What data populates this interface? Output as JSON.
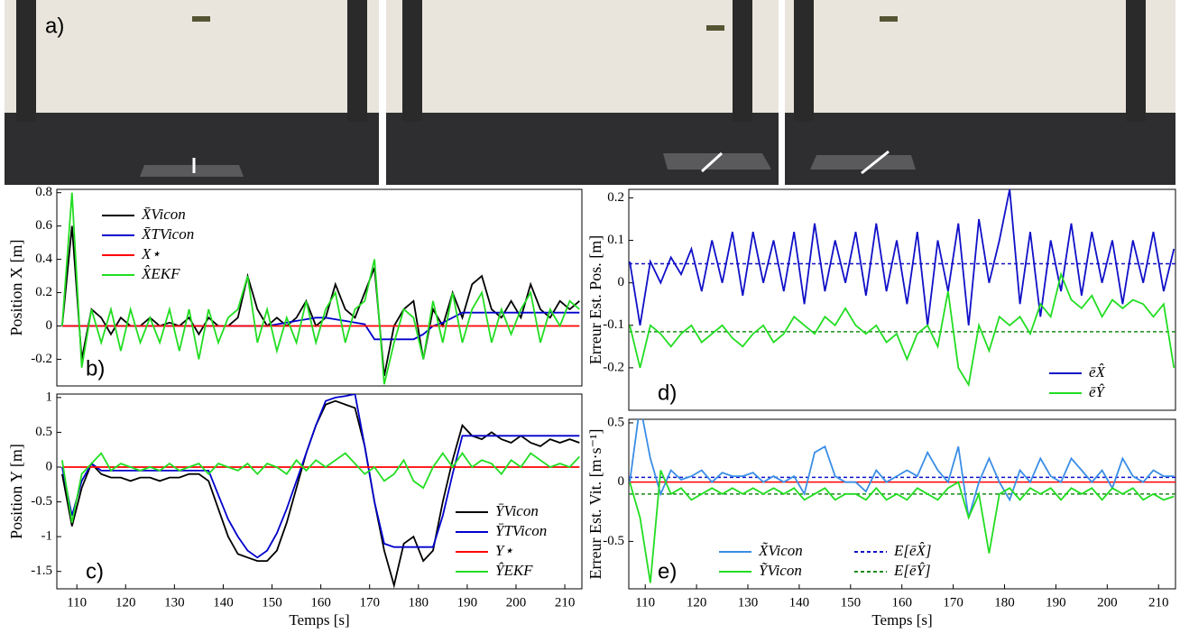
{
  "photos": {
    "label": "a)"
  },
  "chart_data": [
    {
      "type": "line",
      "y_label": "Position X [m]",
      "panel_label": "b)",
      "x": [
        107,
        109,
        111,
        113,
        115,
        117,
        119,
        121,
        123,
        125,
        127,
        129,
        131,
        133,
        135,
        137,
        139,
        141,
        143,
        145,
        147,
        149,
        151,
        153,
        155,
        157,
        159,
        161,
        163,
        165,
        167,
        169,
        171,
        173,
        175,
        177,
        179,
        181,
        183,
        185,
        187,
        189,
        191,
        193,
        195,
        197,
        199,
        201,
        203,
        205,
        207,
        209,
        211,
        213
      ],
      "xlim": [
        105.9,
        213.5
      ],
      "ylim": [
        -0.36,
        0.82
      ],
      "yticks": [
        -0.2,
        0,
        0.2,
        0.4,
        0.6,
        0.8
      ],
      "legend": "upper left",
      "series": [
        {
          "name": "X̄Vicon",
          "color": "#000000",
          "values": [
            0,
            0.6,
            -0.2,
            0.1,
            0.05,
            -0.05,
            0.05,
            0,
            0,
            0.05,
            0,
            0.02,
            0,
            0.05,
            -0.05,
            0.05,
            0,
            0,
            0.05,
            0.3,
            0.1,
            0,
            0.05,
            0,
            0.05,
            0.15,
            0,
            0.05,
            0.25,
            0.1,
            0.05,
            0.2,
            0.35,
            -0.3,
            0,
            0.1,
            0.15,
            -0.2,
            0.1,
            0,
            0.2,
            0.05,
            0.25,
            0.3,
            0.1,
            0.05,
            0.15,
            0.05,
            0.25,
            0.1,
            0.05,
            0.15,
            0.1,
            0.15
          ]
        },
        {
          "name": "X̄TVicon",
          "color": "#0000cc",
          "values": [
            0,
            0,
            0,
            0,
            0,
            0,
            0,
            0,
            0,
            0,
            0,
            0,
            0,
            0,
            0,
            0,
            0,
            0,
            0,
            0,
            0,
            0,
            0.01,
            0.02,
            0.03,
            0.04,
            0.05,
            0.05,
            0.04,
            0.03,
            0.02,
            0.01,
            -0.08,
            -0.08,
            -0.08,
            -0.08,
            -0.08,
            -0.05,
            0,
            0.02,
            0.05,
            0.08,
            0.08,
            0.08,
            0.08,
            0.08,
            0.08,
            0.08,
            0.08,
            0.08,
            0.08,
            0.08,
            0.08,
            0.08
          ]
        },
        {
          "name": "X⋆",
          "color": "#ff0000",
          "values": [
            0,
            0,
            0,
            0,
            0,
            0,
            0,
            0,
            0,
            0,
            0,
            0,
            0,
            0,
            0,
            0,
            0,
            0,
            0,
            0,
            0,
            0,
            0,
            0,
            0,
            0,
            0,
            0,
            0,
            0,
            0,
            0,
            0,
            0,
            0,
            0,
            0,
            0,
            0,
            0,
            0,
            0,
            0,
            0,
            0,
            0,
            0,
            0,
            0,
            0,
            0,
            0,
            0,
            0
          ]
        },
        {
          "name": "X̂EKF",
          "color": "#22dd22",
          "values": [
            0,
            0.8,
            -0.25,
            0.1,
            -0.1,
            0.1,
            -0.15,
            0.1,
            -0.1,
            0.05,
            -0.1,
            0.1,
            -0.15,
            0.1,
            -0.2,
            0.1,
            -0.1,
            0.05,
            0.1,
            0.3,
            -0.1,
            0.1,
            -0.15,
            0.05,
            -0.1,
            0.15,
            -0.1,
            0.1,
            0.2,
            -0.1,
            0.1,
            0.15,
            0.4,
            -0.35,
            -0.1,
            0.1,
            0.05,
            -0.2,
            0.15,
            -0.1,
            0.2,
            -0.1,
            0.1,
            0.2,
            -0.1,
            0.1,
            -0.05,
            0.1,
            0.2,
            -0.1,
            0.1,
            0,
            0.15,
            0.1
          ]
        }
      ]
    },
    {
      "type": "line",
      "y_label": "Position Y [m]",
      "x_label": "Temps [s]",
      "panel_label": "c)",
      "x": [
        107,
        109,
        111,
        113,
        115,
        117,
        119,
        121,
        123,
        125,
        127,
        129,
        131,
        133,
        135,
        137,
        139,
        141,
        143,
        145,
        147,
        149,
        151,
        153,
        155,
        157,
        159,
        161,
        163,
        165,
        167,
        169,
        171,
        173,
        175,
        177,
        179,
        181,
        183,
        185,
        187,
        189,
        191,
        193,
        195,
        197,
        199,
        201,
        203,
        205,
        207,
        209,
        211,
        213
      ],
      "xlim": [
        105.9,
        213.5
      ],
      "ylim": [
        -1.75,
        1.05
      ],
      "xticks": [
        110,
        120,
        130,
        140,
        150,
        160,
        170,
        180,
        190,
        200,
        210
      ],
      "yticks": [
        -1.5,
        -1,
        -0.5,
        0,
        0.5,
        1
      ],
      "legend": "lower right",
      "series": [
        {
          "name": "ȲVicon",
          "color": "#000000",
          "values": [
            -0.1,
            -0.85,
            -0.3,
            0.05,
            -0.1,
            -0.15,
            -0.15,
            -0.2,
            -0.15,
            -0.15,
            -0.2,
            -0.15,
            -0.15,
            -0.1,
            -0.1,
            -0.2,
            -0.6,
            -1.0,
            -1.25,
            -1.3,
            -1.35,
            -1.35,
            -1.2,
            -0.8,
            -0.3,
            0.2,
            0.6,
            0.9,
            0.95,
            0.9,
            0.85,
            0.3,
            -0.5,
            -1.2,
            -1.7,
            -1.1,
            -1.0,
            -1.35,
            -1.2,
            -0.5,
            0.1,
            0.6,
            0.45,
            0.4,
            0.5,
            0.4,
            0.35,
            0.45,
            0.35,
            0.3,
            0.4,
            0.35,
            0.4,
            0.35
          ]
        },
        {
          "name": "ȲTVicon",
          "color": "#0000cc",
          "values": [
            0,
            -0.7,
            -0.2,
            0.05,
            -0.05,
            -0.05,
            -0.05,
            -0.05,
            -0.05,
            -0.05,
            -0.05,
            -0.05,
            -0.05,
            -0.05,
            -0.05,
            -0.05,
            -0.4,
            -0.75,
            -1.0,
            -1.2,
            -1.3,
            -1.2,
            -0.95,
            -0.6,
            -0.2,
            0.2,
            0.6,
            0.95,
            1.0,
            1.02,
            1.05,
            0.3,
            -0.5,
            -1.1,
            -1.15,
            -1.15,
            -1.15,
            -1.15,
            -1.15,
            -0.7,
            -0.1,
            0.45,
            0.45,
            0.45,
            0.45,
            0.45,
            0.45,
            0.45,
            0.45,
            0.45,
            0.45,
            0.45,
            0.45,
            0.45
          ]
        },
        {
          "name": "Y⋆",
          "color": "#ff0000",
          "values": [
            0,
            0,
            0,
            0,
            0,
            0,
            0,
            0,
            0,
            0,
            0,
            0,
            0,
            0,
            0,
            0,
            0,
            0,
            0,
            0,
            0,
            0,
            0,
            0,
            0,
            0,
            0,
            0,
            0,
            0,
            0,
            0,
            0,
            0,
            0,
            0,
            0,
            0,
            0,
            0,
            0,
            0,
            0,
            0,
            0,
            0,
            0,
            0,
            0,
            0,
            0,
            0,
            0,
            0
          ]
        },
        {
          "name": "ŶEKF",
          "color": "#22dd22",
          "values": [
            0.1,
            -0.8,
            -0.1,
            0.05,
            0.2,
            -0.05,
            0.05,
            0,
            -0.05,
            0,
            -0.05,
            0.05,
            -0.05,
            0,
            0.05,
            -0.1,
            0.05,
            0,
            -0.05,
            0.05,
            -0.1,
            0.05,
            0,
            -0.1,
            0.1,
            -0.05,
            0.1,
            0,
            0.1,
            0.2,
            0.05,
            -0.1,
            0,
            -0.2,
            -0.1,
            0.1,
            -0.2,
            -0.3,
            0,
            0.2,
            0,
            0.2,
            0,
            0.1,
            0.05,
            -0.1,
            0.1,
            0,
            0.2,
            0.1,
            0,
            0.05,
            0,
            0.15
          ]
        }
      ]
    },
    {
      "type": "line",
      "y_label": "Erreur Est. Pos. [m]",
      "panel_label": "d)",
      "x": [
        107,
        109,
        111,
        113,
        115,
        117,
        119,
        121,
        123,
        125,
        127,
        129,
        131,
        133,
        135,
        137,
        139,
        141,
        143,
        145,
        147,
        149,
        151,
        153,
        155,
        157,
        159,
        161,
        163,
        165,
        167,
        169,
        171,
        173,
        175,
        177,
        179,
        181,
        183,
        185,
        187,
        189,
        191,
        193,
        195,
        197,
        199,
        201,
        203,
        205,
        207,
        209,
        211,
        213
      ],
      "xlim": [
        106.8,
        213.3
      ],
      "ylim": [
        -0.3,
        0.22
      ],
      "yticks": [
        -0.2,
        -0.1,
        0,
        0.1,
        0.2
      ],
      "legend": "lower right",
      "hlines": [
        {
          "value": 0.045,
          "color": "#1010c8",
          "dash": true
        },
        {
          "value": -0.115,
          "color": "#1a8a1a",
          "dash": true
        }
      ],
      "series": [
        {
          "name": "ēX̂",
          "color": "#1010c8",
          "values": [
            0.05,
            -0.1,
            0.05,
            0,
            0.06,
            0.02,
            0.08,
            -0.02,
            0.1,
            0,
            0.12,
            -0.03,
            0.12,
            0,
            0.1,
            -0.02,
            0.12,
            -0.05,
            0.14,
            -0.02,
            0.1,
            0,
            0.12,
            -0.03,
            0.14,
            -0.02,
            0.1,
            -0.05,
            0.12,
            -0.1,
            0.1,
            -0.02,
            0.14,
            -0.1,
            0.15,
            0,
            0.1,
            0.22,
            -0.05,
            0.12,
            -0.08,
            0.1,
            -0.02,
            0.14,
            -0.03,
            0.12,
            0,
            0.1,
            -0.05,
            0.1,
            0,
            0.12,
            -0.02,
            0.08
          ]
        },
        {
          "name": "ēŶ",
          "color": "#22dd22",
          "values": [
            -0.1,
            -0.2,
            -0.1,
            -0.12,
            -0.15,
            -0.12,
            -0.1,
            -0.14,
            -0.12,
            -0.1,
            -0.13,
            -0.15,
            -0.12,
            -0.1,
            -0.14,
            -0.12,
            -0.08,
            -0.1,
            -0.12,
            -0.08,
            -0.1,
            -0.06,
            -0.1,
            -0.12,
            -0.1,
            -0.14,
            -0.12,
            -0.18,
            -0.12,
            -0.1,
            -0.15,
            -0.02,
            -0.2,
            -0.24,
            -0.1,
            -0.16,
            -0.08,
            -0.1,
            -0.08,
            -0.12,
            -0.05,
            -0.08,
            0.02,
            -0.04,
            -0.06,
            -0.03,
            -0.08,
            -0.04,
            -0.06,
            -0.04,
            -0.05,
            -0.08,
            -0.05,
            -0.2
          ]
        }
      ]
    },
    {
      "type": "line",
      "y_label": "Erreur Est. Vit. [m·s⁻¹]",
      "x_label": "Temps [s]",
      "panel_label": "e)",
      "x": [
        107,
        109,
        111,
        113,
        115,
        117,
        119,
        121,
        123,
        125,
        127,
        129,
        131,
        133,
        135,
        137,
        139,
        141,
        143,
        145,
        147,
        149,
        151,
        153,
        155,
        157,
        159,
        161,
        163,
        165,
        167,
        169,
        171,
        173,
        175,
        177,
        179,
        181,
        183,
        185,
        187,
        189,
        191,
        193,
        195,
        197,
        199,
        201,
        203,
        205,
        207,
        209,
        211,
        213
      ],
      "xlim": [
        106.8,
        213.3
      ],
      "ylim": [
        -0.9,
        0.53
      ],
      "xticks": [
        110,
        120,
        130,
        140,
        150,
        160,
        170,
        180,
        190,
        200,
        210
      ],
      "yticks": [
        -0.5,
        0,
        0.5
      ],
      "legend": "lower center",
      "legend_columns": 2,
      "hlines": [
        {
          "value": 0,
          "color": "#ff0000"
        },
        {
          "name": "E[ēX̂]",
          "value": 0.04,
          "color": "#1010c8",
          "dash": true
        },
        {
          "name": "E[ēŶ]",
          "value": -0.1,
          "color": "#1a8a1a",
          "dash": true
        }
      ],
      "series": [
        {
          "name": "X̃Vicon",
          "color": "#3a8ee6",
          "values": [
            0,
            0.65,
            0.2,
            -0.1,
            0.1,
            0.02,
            0.05,
            0.1,
            0,
            0.08,
            0.05,
            0.05,
            0.08,
            0,
            0.05,
            0,
            0.05,
            -0.1,
            0.25,
            0.3,
            0.05,
            0,
            0,
            -0.08,
            0.1,
            0,
            0.05,
            0.1,
            0.05,
            0.25,
            0.1,
            0,
            0.3,
            -0.3,
            0,
            0.2,
            0,
            -0.15,
            0.1,
            0,
            0.2,
            0.05,
            0,
            0.2,
            0.1,
            0,
            0.1,
            -0.05,
            0.2,
            0.05,
            0,
            0.1,
            0.05,
            0.05
          ]
        },
        {
          "name": "ỸVicon",
          "color": "#22dd22",
          "values": [
            0,
            -0.3,
            -0.85,
            0.1,
            -0.1,
            -0.05,
            -0.15,
            -0.1,
            -0.05,
            -0.1,
            -0.05,
            -0.1,
            -0.05,
            -0.1,
            -0.05,
            -0.1,
            -0.05,
            -0.15,
            -0.1,
            -0.05,
            -0.15,
            -0.1,
            -0.1,
            -0.15,
            -0.05,
            -0.15,
            -0.1,
            -0.15,
            -0.05,
            -0.1,
            -0.15,
            -0.05,
            0,
            -0.3,
            -0.1,
            -0.6,
            -0.1,
            -0.05,
            -0.15,
            -0.05,
            -0.1,
            -0.05,
            -0.15,
            -0.05,
            -0.1,
            -0.05,
            -0.15,
            -0.05,
            -0.1,
            -0.05,
            -0.15,
            -0.1,
            -0.15,
            -0.12
          ]
        }
      ]
    }
  ]
}
